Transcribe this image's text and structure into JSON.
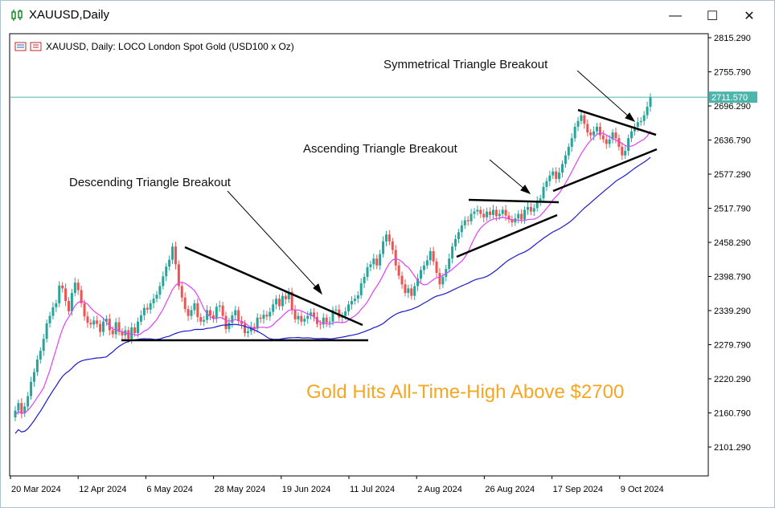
{
  "window": {
    "title": "XAUUSD,Daily",
    "minimize_glyph": "—",
    "maximize_glyph": "☐",
    "close_glyph": "✕"
  },
  "chart_header": "XAUUSD, Daily:  LOCO London Spot Gold (USD100 x Oz)",
  "colors": {
    "bull": "#26a69a",
    "bear": "#ef5350",
    "ma_fast": "#e040fb",
    "ma_slow": "#1a1acc",
    "price_line": "#4db6ac",
    "headline": "#f5a623"
  },
  "chart_data": {
    "type": "candlestick",
    "title": "XAUUSD, Daily:  LOCO London Spot Gold (USD100 x Oz)",
    "x_tick_labels": [
      "20 Mar 2024",
      "12 Apr 2024",
      "6 May 2024",
      "28 May 2024",
      "19 Jun 2024",
      "11 Jul 2024",
      "2 Aug 2024",
      "26 Aug 2024",
      "17 Sep 2024",
      "9 Oct 2024"
    ],
    "y_tick_labels": [
      "2815.290",
      "2755.790",
      "2696.290",
      "2636.790",
      "2577.290",
      "2517.790",
      "2458.290",
      "2398.790",
      "2339.290",
      "2279.790",
      "2220.290",
      "2160.790",
      "2101.290"
    ],
    "ylim": [
      2060,
      2830
    ],
    "current_price": "2711.570",
    "annotations": [
      {
        "text": "Symmetrical Triangle Breakout"
      },
      {
        "text": "Ascending Triangle Breakout"
      },
      {
        "text": "Descending Triangle Breakout"
      }
    ],
    "headline": "Gold Hits All-Time-High Above $2700",
    "closes": [
      2165,
      2178,
      2160,
      2172,
      2190,
      2215,
      2232,
      2254,
      2269,
      2290,
      2317,
      2330,
      2345,
      2352,
      2383,
      2378,
      2356,
      2338,
      2370,
      2388,
      2375,
      2352,
      2329,
      2318,
      2315,
      2322,
      2316,
      2302,
      2320,
      2325,
      2305,
      2298,
      2319,
      2302,
      2296,
      2305,
      2290,
      2310,
      2300,
      2320,
      2331,
      2344,
      2341,
      2352,
      2360,
      2367,
      2382,
      2399,
      2416,
      2428,
      2451,
      2420,
      2382,
      2362,
      2342,
      2330,
      2340,
      2352,
      2328,
      2320,
      2323,
      2340,
      2331,
      2325,
      2346,
      2348,
      2330,
      2307,
      2318,
      2331,
      2340,
      2321,
      2316,
      2300,
      2303,
      2311,
      2308,
      2327,
      2325,
      2332,
      2329,
      2337,
      2350,
      2360,
      2347,
      2365,
      2359,
      2372,
      2340,
      2324,
      2330,
      2320,
      2325,
      2330,
      2336,
      2328,
      2316,
      2315,
      2327,
      2318,
      2320,
      2340,
      2341,
      2327,
      2330,
      2338,
      2350,
      2356,
      2360,
      2366,
      2387,
      2398,
      2415,
      2420,
      2430,
      2418,
      2438,
      2460,
      2472,
      2460,
      2445,
      2418,
      2400,
      2385,
      2370,
      2378,
      2365,
      2382,
      2395,
      2410,
      2418,
      2427,
      2443,
      2425,
      2405,
      2385,
      2398,
      2412,
      2430,
      2451,
      2464,
      2476,
      2488,
      2497,
      2495,
      2508,
      2512,
      2515,
      2508,
      2502,
      2512,
      2506,
      2515,
      2504,
      2508,
      2515,
      2505,
      2498,
      2493,
      2500,
      2508,
      2498,
      2515,
      2520,
      2512,
      2518,
      2530,
      2535,
      2555,
      2565,
      2575,
      2582,
      2569,
      2580,
      2595,
      2610,
      2625,
      2640,
      2660,
      2670,
      2680,
      2665,
      2650,
      2645,
      2652,
      2660,
      2645,
      2638,
      2630,
      2638,
      2650,
      2640,
      2625,
      2610,
      2618,
      2640,
      2652,
      2660,
      2668,
      2670,
      2680,
      2695,
      2712
    ]
  }
}
